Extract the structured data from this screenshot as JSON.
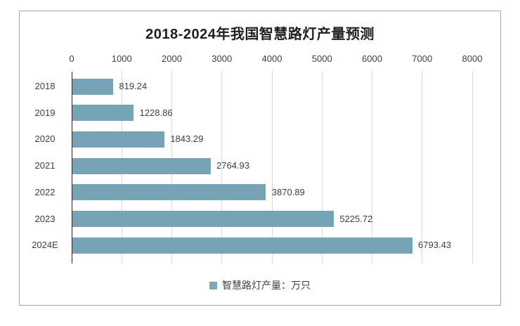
{
  "window": {
    "background_color": "#ffffff",
    "frame_border_color": "#a6a6a6"
  },
  "chart_data": {
    "type": "bar",
    "orientation": "horizontal",
    "title": "2018-2024年我国智慧路灯产量预测",
    "categories": [
      "2018",
      "2019",
      "2020",
      "2021",
      "2022",
      "2023",
      "2024E"
    ],
    "values": [
      819.24,
      1228.86,
      1843.29,
      2764.93,
      3870.89,
      5225.72,
      6793.43
    ],
    "value_labels": [
      "819.24",
      "1228.86",
      "1843.29",
      "2764.93",
      "3870.89",
      "5225.72",
      "6793.43"
    ],
    "xlabel": "",
    "ylabel": "",
    "xlim": [
      0,
      8000
    ],
    "xticks": [
      0,
      1000,
      2000,
      3000,
      4000,
      5000,
      6000,
      7000,
      8000
    ],
    "xaxis_position": "top",
    "grid": "vertical",
    "data_labels": true,
    "legend_position": "bottom",
    "bar_color": "#76a3b5",
    "gridline_color": "#d9d9d9",
    "axis_line_color": "#262626",
    "label_color": "#404040"
  },
  "legend": {
    "marker": "square-icon",
    "label": "智慧路灯产量：万只"
  }
}
